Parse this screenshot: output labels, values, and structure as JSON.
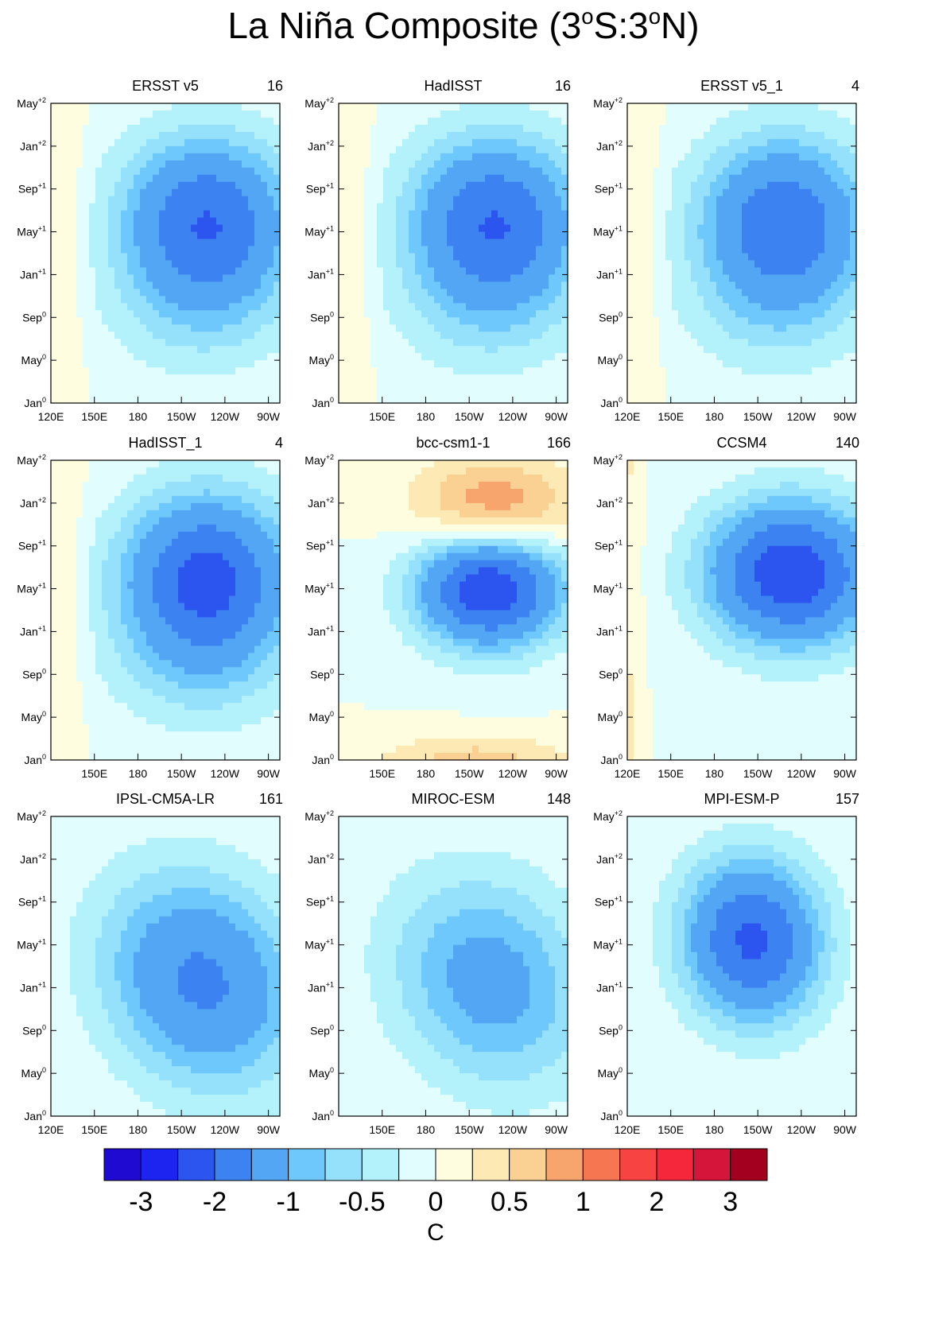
{
  "chart_data": {
    "type": "heatmap",
    "title": "La Niña Composite (3°S:3°N)",
    "title_parts": {
      "pre": "La Niña Composite (3",
      "deg1": "o",
      "mid": "S:3",
      "deg2": "o",
      "post": "N)"
    },
    "y_ticks": [
      {
        "base": "May",
        "sup": "+2"
      },
      {
        "base": "Jan",
        "sup": "+2"
      },
      {
        "base": "Sep",
        "sup": "+1"
      },
      {
        "base": "May",
        "sup": "+1"
      },
      {
        "base": "Jan",
        "sup": "+1"
      },
      {
        "base": "Sep",
        "sup": "0"
      },
      {
        "base": "May",
        "sup": "0"
      },
      {
        "base": "Jan",
        "sup": "0"
      }
    ],
    "x_ticks_full": [
      "120E",
      "150E",
      "180",
      "150W",
      "120W",
      "90W"
    ],
    "colorbar": {
      "unit": "C",
      "labels": [
        "-3",
        "-2",
        "-1",
        "-0.5",
        "0",
        "0.5",
        "1",
        "2",
        "3"
      ],
      "colors": [
        "#1e0ad0",
        "#1e24f0",
        "#2c55f0",
        "#3c82f0",
        "#52a6f4",
        "#6fc8fb",
        "#95e1fb",
        "#b4f2fb",
        "#e2fdfd",
        "#fffde0",
        "#fde9b4",
        "#fbd093",
        "#f7a56c",
        "#f57650",
        "#f74442",
        "#f5283b",
        "#d6153a",
        "#a3001f"
      ]
    },
    "panels": [
      {
        "name": "ERSST v5",
        "count": "16",
        "x_labels": [
          "120E",
          "150E",
          "180",
          "150W",
          "120W",
          "90W"
        ]
      },
      {
        "name": "HadISST",
        "count": "16",
        "x_labels": [
          "150E",
          "180",
          "150W",
          "120W",
          "90W"
        ]
      },
      {
        "name": "ERSST v5_1",
        "count": "4",
        "x_labels": [
          "120E",
          "150E",
          "180",
          "150W",
          "120W",
          "90W"
        ]
      },
      {
        "name": "HadISST_1",
        "count": "4",
        "x_labels": [
          "150E",
          "180",
          "150W",
          "120W",
          "90W"
        ]
      },
      {
        "name": "bcc-csm1-1",
        "count": "166",
        "x_labels": [
          "150E",
          "180",
          "150W",
          "120W",
          "90W"
        ]
      },
      {
        "name": "CCSM4",
        "count": "140",
        "x_labels": [
          "120E",
          "150E",
          "180",
          "150W",
          "120W",
          "90W"
        ]
      },
      {
        "name": "IPSL-CM5A-LR",
        "count": "161",
        "x_labels": [
          "120E",
          "150E",
          "180",
          "150W",
          "120W",
          "90W"
        ]
      },
      {
        "name": "MIROC-ESM",
        "count": "148",
        "x_labels": [
          "150E",
          "180",
          "150W",
          "120W",
          "90W"
        ]
      },
      {
        "name": "MPI-ESM-P",
        "count": "157",
        "x_labels": [
          "120E",
          "150E",
          "180",
          "150W",
          "120W",
          "90W"
        ]
      }
    ],
    "anomaly_patterns": [
      {
        "kind": "obs",
        "peak": -2.0
      },
      {
        "kind": "obs",
        "peak": -2.0
      },
      {
        "kind": "obs",
        "peak": -1.9
      },
      {
        "kind": "obs",
        "peak": -2.2
      },
      {
        "kind": "bcc",
        "peak": -2.5
      },
      {
        "kind": "ccsm",
        "peak": -2.4
      },
      {
        "kind": "weak",
        "peak": -1.6
      },
      {
        "kind": "weak",
        "peak": -1.2
      },
      {
        "kind": "mpi",
        "peak": -2.1
      }
    ]
  }
}
